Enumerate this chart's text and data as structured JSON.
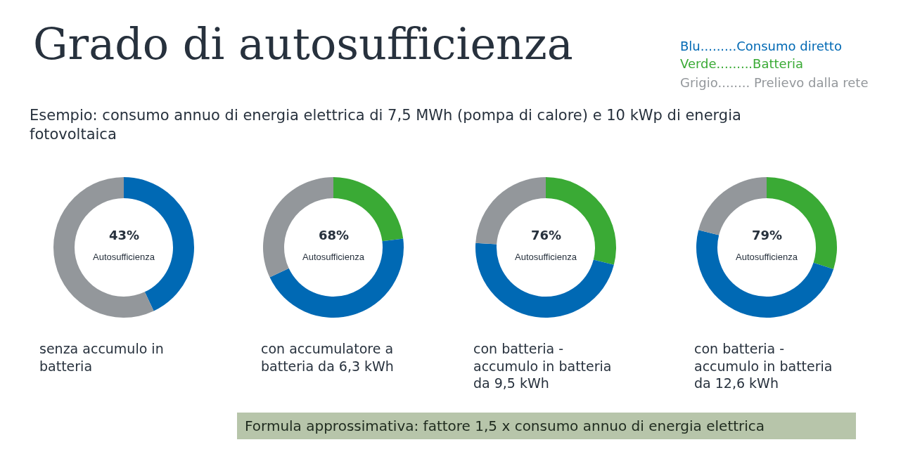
{
  "chart_data": [
    {
      "type": "donut",
      "title": "Grado di autosufficienza",
      "subtitle": "Esempio: consumo annuo di energia elettrica di 7,5 MWh (pompa di calore) e 10 kWp di energia fotovoltaica",
      "xlabel": "senza accumulo in batteria",
      "categories": [
        null,
        null
      ],
      "values": [
        43,
        57
      ],
      "colors": [
        "#0069b4",
        "#93979b"
      ],
      "annotations": [
        "43%",
        "Autosufficienza",
        "Blu.........Consumo diretto",
        "Verde.........Batteria",
        "Grigio........ Prelievo dalla rete",
        "Formula approssimativa: fattore 1,5 x consumo annuo di energia elettrica"
      ]
    },
    {
      "type": "donut",
      "xlabel": "con accumulatore a batteria da 6,3 kWh",
      "categories": [
        null,
        null,
        null
      ],
      "values": [
        23,
        45,
        32
      ],
      "colors": [
        "#3aaa35",
        "#0069b4",
        "#93979b"
      ],
      "annotations": [
        "68%",
        "Autosufficienza"
      ]
    },
    {
      "type": "donut",
      "xlabel": "con batteria - accumulo in batteria da 9,5 kWh",
      "categories": [
        null,
        null,
        null
      ],
      "values": [
        29,
        47,
        24
      ],
      "colors": [
        "#3aaa35",
        "#0069b4",
        "#93979b"
      ],
      "annotations": [
        "76%",
        "Autosufficienza"
      ]
    },
    {
      "type": "donut",
      "xlabel": "con batteria - accumulo in batteria da 12,6 kWh",
      "categories": [
        null,
        null,
        null
      ],
      "values": [
        30,
        49,
        21
      ],
      "colors": [
        "#3aaa35",
        "#0069b4",
        "#93979b"
      ],
      "annotations": [
        "79%",
        "Autosufficienza"
      ]
    }
  ]
}
